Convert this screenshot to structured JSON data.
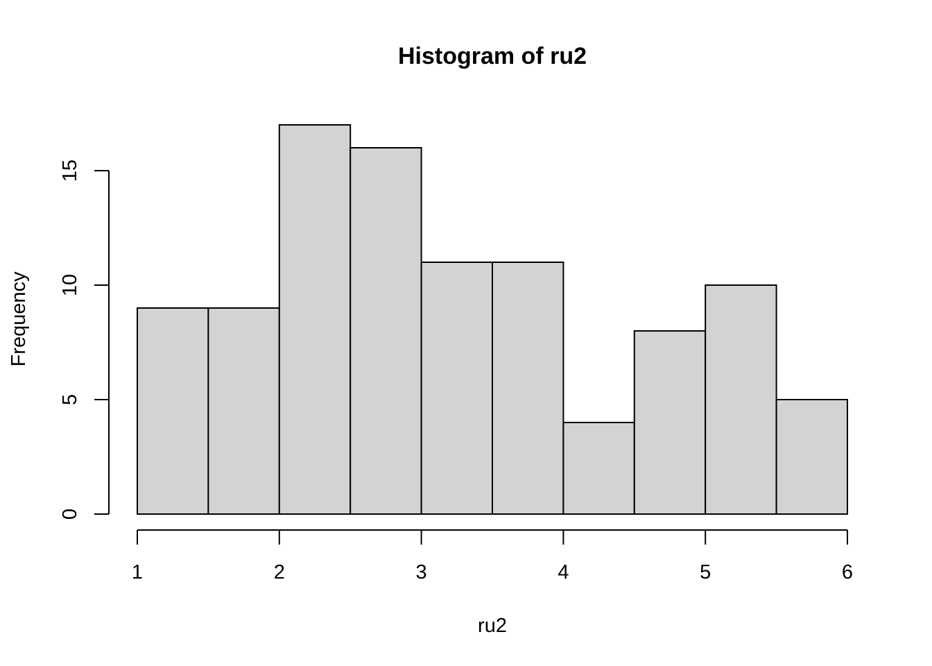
{
  "chart_data": {
    "type": "bar",
    "title": "Histogram of ru2",
    "xlabel": "ru2",
    "ylabel": "Frequency",
    "bins": [
      {
        "start": 1.0,
        "end": 1.5,
        "count": 9
      },
      {
        "start": 1.5,
        "end": 2.0,
        "count": 9
      },
      {
        "start": 2.0,
        "end": 2.5,
        "count": 17
      },
      {
        "start": 2.5,
        "end": 3.0,
        "count": 16
      },
      {
        "start": 3.0,
        "end": 3.5,
        "count": 11
      },
      {
        "start": 3.5,
        "end": 4.0,
        "count": 11
      },
      {
        "start": 4.0,
        "end": 4.5,
        "count": 4
      },
      {
        "start": 4.5,
        "end": 5.0,
        "count": 8
      },
      {
        "start": 5.0,
        "end": 5.5,
        "count": 10
      },
      {
        "start": 5.5,
        "end": 6.0,
        "count": 5
      }
    ],
    "xlim": [
      1,
      6
    ],
    "ylim": [
      0,
      17
    ],
    "x_ticks": [
      "1",
      "2",
      "3",
      "4",
      "5",
      "6"
    ],
    "y_ticks": [
      "0",
      "5",
      "10",
      "15"
    ],
    "bar_color": "#d3d3d3",
    "grid": false
  }
}
